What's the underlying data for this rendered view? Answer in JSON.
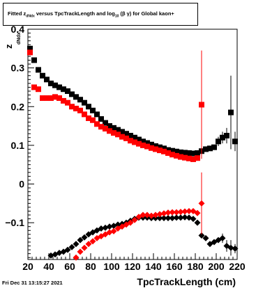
{
  "title": {
    "prefix": "Fitted",
    "z": "z",
    "z_sub": "dNdx",
    "middle": "versus TpcTrackLength and log",
    "log_sub": "10",
    "beta_gamma": "(β γ)",
    "suffix": "for Global kaon+"
  },
  "timestamp": "Fri Dec 31 13:15:27 2021",
  "chart_data": {
    "type": "scatter",
    "xlabel": "TpcTrackLength (cm)",
    "ylabel": "z",
    "ylabel_sub": "dNdx",
    "xlim": [
      20,
      220
    ],
    "ylim": [
      -0.195,
      0.4
    ],
    "xticks": [
      20,
      40,
      60,
      80,
      100,
      120,
      140,
      160,
      180,
      200,
      220
    ],
    "yticks": [
      -0.1,
      0,
      0.1,
      0.2,
      0.3,
      0.4
    ],
    "ytick_labels": [
      "−0.1",
      "0",
      "0.1",
      "0.2",
      "0.3",
      "0.4"
    ],
    "series": [
      {
        "color": "#000000",
        "marker": "square",
        "x": [
          22,
          26,
          30,
          34,
          38,
          42,
          46,
          50,
          54,
          58,
          62,
          66,
          70,
          74,
          78,
          82,
          86,
          90,
          94,
          98,
          102,
          106,
          110,
          114,
          118,
          122,
          126,
          130,
          134,
          138,
          142,
          146,
          150,
          154,
          158,
          162,
          166,
          170,
          174,
          178,
          182,
          186,
          190,
          194,
          198,
          202,
          206,
          210,
          214,
          218
        ],
        "y": [
          0.35,
          0.32,
          0.295,
          0.28,
          0.27,
          0.26,
          0.255,
          0.25,
          0.245,
          0.24,
          0.232,
          0.225,
          0.218,
          0.21,
          0.2,
          0.19,
          0.18,
          0.168,
          0.158,
          0.15,
          0.145,
          0.14,
          0.135,
          0.13,
          0.125,
          0.12,
          0.115,
          0.11,
          0.106,
          0.102,
          0.098,
          0.095,
          0.092,
          0.088,
          0.086,
          0.084,
          0.082,
          0.081,
          0.08,
          0.079,
          0.08,
          0.085,
          0.09,
          0.092,
          0.095,
          0.11,
          0.12,
          0.125,
          0.185,
          0.11
        ],
        "err": [
          0,
          0,
          0,
          0,
          0,
          0,
          0,
          0,
          0,
          0,
          0,
          0,
          0,
          0,
          0,
          0,
          0,
          0,
          0,
          0,
          0,
          0,
          0,
          0,
          0,
          0,
          0,
          0,
          0,
          0,
          0,
          0,
          0,
          0,
          0,
          0,
          0,
          0,
          0,
          0,
          0,
          0,
          0,
          0,
          0,
          0.012,
          0.015,
          0.02,
          0.095,
          0.025
        ]
      },
      {
        "color": "#ff0000",
        "marker": "square",
        "x": [
          22,
          26,
          30,
          34,
          38,
          42,
          46,
          50,
          54,
          58,
          62,
          66,
          70,
          74,
          78,
          82,
          86,
          90,
          94,
          98,
          102,
          106,
          110,
          114,
          118,
          122,
          126,
          130,
          134,
          138,
          142,
          146,
          150,
          154,
          158,
          162,
          166,
          170,
          174,
          178,
          182,
          186
        ],
        "y": [
          0.34,
          0.25,
          0.245,
          0.222,
          0.222,
          0.222,
          0.225,
          0.222,
          0.215,
          0.21,
          0.2,
          0.195,
          0.19,
          0.18,
          0.17,
          0.165,
          0.155,
          0.148,
          0.143,
          0.137,
          0.132,
          0.128,
          0.122,
          0.118,
          0.112,
          0.108,
          0.104,
          0.1,
          0.097,
          0.093,
          0.09,
          0.087,
          0.084,
          0.08,
          0.076,
          0.073,
          0.07,
          0.068,
          0.066,
          0.064,
          0.067,
          0.205
        ],
        "err": [
          0,
          0,
          0,
          0,
          0,
          0,
          0,
          0,
          0,
          0,
          0,
          0,
          0,
          0,
          0,
          0,
          0,
          0,
          0,
          0,
          0,
          0,
          0,
          0,
          0,
          0,
          0,
          0,
          0,
          0,
          0,
          0,
          0,
          0,
          0,
          0,
          0,
          0,
          0,
          0,
          0,
          0.14
        ]
      },
      {
        "color": "#000000",
        "marker": "circle",
        "x": [
          42,
          46,
          50,
          54,
          58,
          62,
          66,
          70,
          74,
          78,
          82,
          86,
          90,
          94,
          98,
          102,
          106,
          110,
          114,
          118,
          122,
          126,
          130,
          134,
          138,
          142,
          146,
          150,
          154,
          158,
          162,
          166,
          170,
          174,
          178,
          182,
          186,
          190,
          194,
          198,
          202,
          206,
          210,
          214,
          218
        ],
        "y": [
          -0.185,
          -0.182,
          -0.178,
          -0.175,
          -0.17,
          -0.163,
          -0.155,
          -0.145,
          -0.138,
          -0.13,
          -0.125,
          -0.12,
          -0.115,
          -0.113,
          -0.11,
          -0.108,
          -0.105,
          -0.103,
          -0.1,
          -0.095,
          -0.09,
          -0.087,
          -0.087,
          -0.087,
          -0.088,
          -0.088,
          -0.088,
          -0.088,
          -0.088,
          -0.088,
          -0.087,
          -0.087,
          -0.086,
          -0.087,
          -0.09,
          -0.1,
          -0.133,
          -0.14,
          -0.155,
          -0.15,
          -0.145,
          -0.14,
          -0.16,
          -0.165,
          -0.167
        ],
        "err": [
          0,
          0,
          0,
          0,
          0,
          0,
          0,
          0,
          0,
          0,
          0,
          0,
          0,
          0,
          0,
          0,
          0,
          0,
          0,
          0,
          0,
          0,
          0,
          0,
          0,
          0,
          0,
          0,
          0,
          0,
          0,
          0,
          0,
          0,
          0,
          0,
          0,
          0,
          0,
          0,
          0,
          0.012,
          0.015,
          0.02,
          0.012
        ]
      },
      {
        "color": "#ff0000",
        "marker": "circle",
        "x": [
          66,
          70,
          74,
          78,
          82,
          86,
          90,
          94,
          98,
          102,
          106,
          110,
          114,
          118,
          122,
          126,
          130,
          134,
          138,
          142,
          146,
          150,
          154,
          158,
          162,
          166,
          170,
          174,
          178,
          182,
          186
        ],
        "y": [
          -0.19,
          -0.175,
          -0.165,
          -0.155,
          -0.148,
          -0.14,
          -0.135,
          -0.13,
          -0.125,
          -0.122,
          -0.115,
          -0.11,
          -0.105,
          -0.1,
          -0.093,
          -0.085,
          -0.08,
          -0.08,
          -0.082,
          -0.08,
          -0.078,
          -0.076,
          -0.074,
          -0.073,
          -0.073,
          -0.072,
          -0.071,
          -0.07,
          -0.07,
          -0.075,
          -0.05
        ],
        "err": [
          0,
          0,
          0,
          0,
          0,
          0,
          0,
          0,
          0,
          0,
          0,
          0,
          0,
          0,
          0,
          0,
          0,
          0,
          0,
          0,
          0,
          0,
          0,
          0,
          0,
          0,
          0,
          0,
          0,
          0,
          0.08
        ]
      }
    ]
  }
}
